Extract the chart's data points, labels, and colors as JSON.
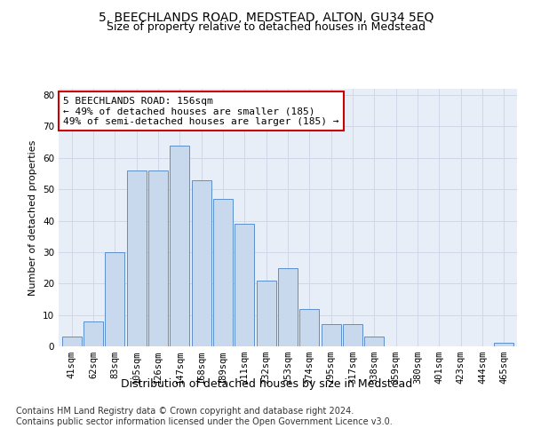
{
  "title": "5, BEECHLANDS ROAD, MEDSTEAD, ALTON, GU34 5EQ",
  "subtitle": "Size of property relative to detached houses in Medstead",
  "xlabel": "Distribution of detached houses by size in Medstead",
  "ylabel": "Number of detached properties",
  "bar_labels": [
    "41sqm",
    "62sqm",
    "83sqm",
    "105sqm",
    "126sqm",
    "147sqm",
    "168sqm",
    "189sqm",
    "211sqm",
    "232sqm",
    "253sqm",
    "274sqm",
    "295sqm",
    "317sqm",
    "338sqm",
    "359sqm",
    "380sqm",
    "401sqm",
    "423sqm",
    "444sqm",
    "465sqm"
  ],
  "bar_values": [
    3,
    8,
    30,
    56,
    56,
    64,
    53,
    47,
    39,
    21,
    25,
    12,
    7,
    7,
    3,
    0,
    0,
    0,
    0,
    0,
    1
  ],
  "bar_color": "#c8d9ee",
  "bar_edge_color": "#5b8fcc",
  "annotation_text": "5 BEECHLANDS ROAD: 156sqm\n← 49% of detached houses are smaller (185)\n49% of semi-detached houses are larger (185) →",
  "annotation_box_color": "#ffffff",
  "annotation_box_edge_color": "#cc0000",
  "ylim": [
    0,
    82
  ],
  "yticks": [
    0,
    10,
    20,
    30,
    40,
    50,
    60,
    70,
    80
  ],
  "grid_color": "#d0d8e8",
  "bg_color": "#e8eef7",
  "footnote": "Contains HM Land Registry data © Crown copyright and database right 2024.\nContains public sector information licensed under the Open Government Licence v3.0.",
  "title_fontsize": 10,
  "subtitle_fontsize": 9,
  "ylabel_fontsize": 8,
  "xlabel_fontsize": 9,
  "tick_fontsize": 7.5,
  "annot_fontsize": 8,
  "footnote_fontsize": 7
}
